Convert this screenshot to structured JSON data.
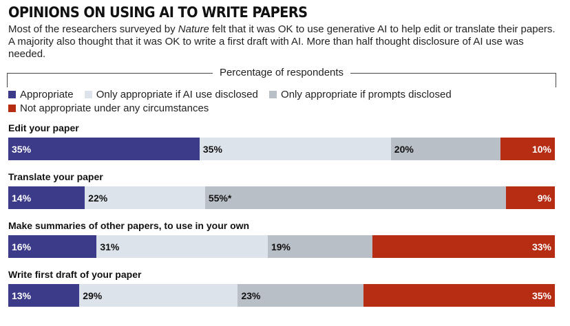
{
  "title": "OPINIONS ON USING AI TO WRITE PAPERS",
  "subtitle_parts": [
    "Most of the researchers surveyed by ",
    "Nature",
    " felt that it was OK to use generative AI to help edit or translate their papers. A majority also thought that it was OK to write a first draft with AI. More than half thought disclosure of AI use was needed."
  ],
  "axis_label": "Percentage of respondents",
  "colors": {
    "appropriate": "#3b3b8a",
    "ai_disclosed": "#dde3ea",
    "prompts_disclosed": "#b9bfc6",
    "not_appropriate": "#b62d14"
  },
  "chart_data": {
    "type": "bar",
    "orientation": "horizontal",
    "stacked": true,
    "xlim": [
      0,
      100
    ],
    "title": "OPINIONS ON USING AI TO WRITE PAPERS",
    "xlabel": "Percentage of respondents",
    "legend_placement": "top",
    "categories": [
      "Edit your paper",
      "Translate your paper",
      "Make summaries of other papers, to use in your own",
      "Write first draft of your paper"
    ],
    "series": [
      {
        "name": "Appropriate",
        "color": "#3b3b8a",
        "values": [
          35,
          14,
          16,
          13
        ],
        "labels": [
          "35%",
          "14%",
          "16%",
          "13%"
        ]
      },
      {
        "name": "Only appropriate if AI use disclosed",
        "color": "#dde3ea",
        "values": [
          35,
          22,
          31,
          29
        ],
        "labels": [
          "35%",
          "22%",
          "31%",
          "29%"
        ]
      },
      {
        "name": "Only appropriate if prompts disclosed",
        "color": "#b9bfc6",
        "values": [
          20,
          55,
          19,
          23
        ],
        "labels": [
          "20%",
          "55%*",
          "19%",
          "23%"
        ]
      },
      {
        "name": "Not appropriate under any circumstances",
        "color": "#b62d14",
        "values": [
          10,
          9,
          33,
          35
        ],
        "labels": [
          "10%",
          "9%",
          "33%",
          "35%"
        ]
      }
    ]
  }
}
